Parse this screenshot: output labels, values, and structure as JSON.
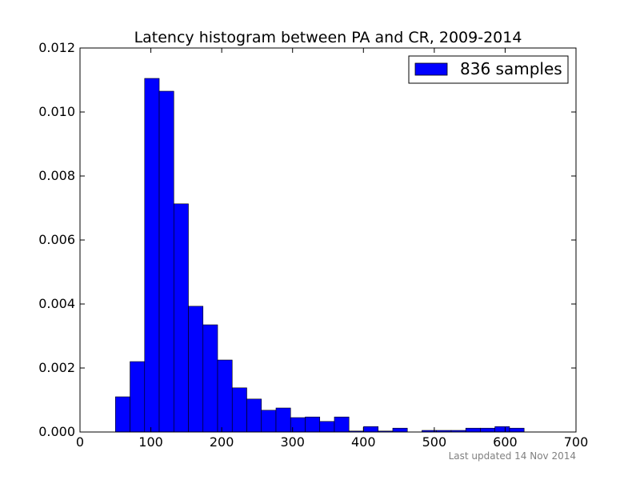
{
  "chart_data": {
    "type": "bar",
    "title": "Latency histogram between PA and CR, 2009-2014",
    "xlabel": "",
    "ylabel": "",
    "xlim": [
      0,
      700
    ],
    "ylim": [
      0,
      0.012
    ],
    "x_ticks": [
      "0",
      "100",
      "200",
      "300",
      "400",
      "500",
      "600",
      "700"
    ],
    "y_ticks": [
      "0.000",
      "0.002",
      "0.004",
      "0.006",
      "0.008",
      "0.010",
      "0.012"
    ],
    "grid": false,
    "legend_position": "top-right",
    "bar_color": "#0000ff",
    "bin_width": 20.6,
    "bin_starts": [
      50,
      70.6,
      91.2,
      111.8,
      132.4,
      153.0,
      173.6,
      194.2,
      214.8,
      235.4,
      256.0,
      276.6,
      297.2,
      317.8,
      338.4,
      359.0,
      379.6,
      400.2,
      420.8,
      441.4,
      462.0,
      482.6,
      503.2,
      523.8,
      544.4,
      565.0,
      585.6,
      606.2
    ],
    "series": [
      {
        "name": "836 samples",
        "values": [
          0.0011,
          0.0022,
          0.01105,
          0.01065,
          0.00713,
          0.00393,
          0.00335,
          0.00225,
          0.00138,
          0.00103,
          0.00068,
          0.00075,
          0.00045,
          0.00047,
          0.00033,
          0.00047,
          3e-05,
          0.00017,
          3e-05,
          0.00012,
          0.0,
          5e-05,
          5e-05,
          5e-05,
          0.00012,
          0.00012,
          0.00017,
          0.00012
        ]
      }
    ]
  },
  "footer": {
    "updated": "Last updated 14 Nov 2014"
  }
}
